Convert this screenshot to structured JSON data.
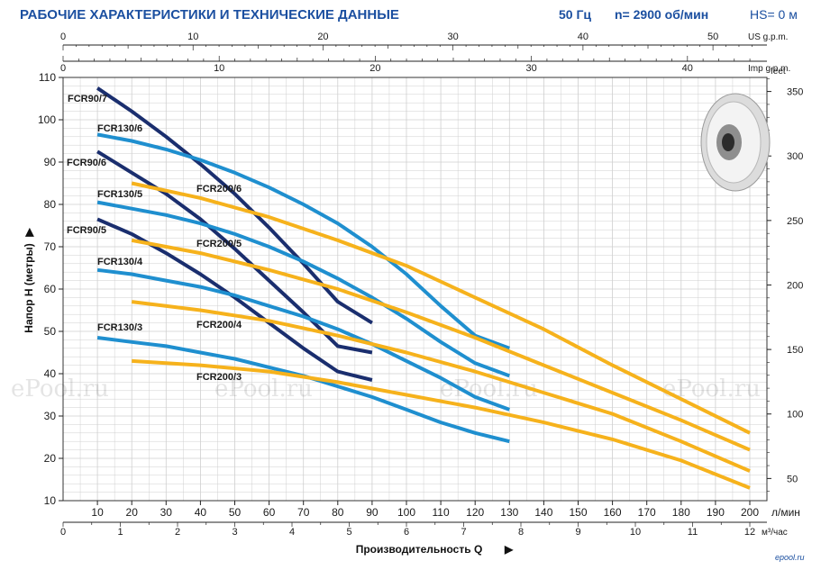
{
  "header": {
    "title": "РАБОЧИЕ ХАРАКТЕРИСТИКИ И ТЕХНИЧЕСКИЕ ДАННЫЕ",
    "freq": "50 Гц",
    "speed": "n= 2900 об/мин",
    "hs": "HS= 0 м"
  },
  "colors": {
    "header": "#1b4fa0",
    "grid": "#c9c9c9",
    "blue_series": "#1f8fcf",
    "navy_series": "#1a2e6e",
    "orange_series": "#f6b21c"
  },
  "watermark": "ePool.ru",
  "logo_text": "epool.ru",
  "image": {
    "icon": "impeller-image"
  },
  "chart_data": {
    "type": "line",
    "ylabel": "Напор H (метры)",
    "xlabel": "Производительность Q",
    "y_unit_right": "feet",
    "x_units": {
      "lpm": "л/мин",
      "m3h": "м³/час",
      "us": "US g.p.m.",
      "imp": "Imp g.p.m."
    },
    "ylim": [
      10,
      110
    ],
    "xlim_lpm": [
      0,
      200
    ],
    "grid": true,
    "y_ticks": [
      10,
      20,
      30,
      40,
      50,
      60,
      70,
      80,
      90,
      100,
      110
    ],
    "y_tick_labels": [
      "10",
      "20",
      "30",
      "40",
      "50",
      "60",
      "70",
      "80",
      "90",
      "100",
      "110"
    ],
    "x_ticks_lpm": [
      10,
      20,
      30,
      40,
      50,
      60,
      70,
      80,
      90,
      100,
      110,
      120,
      130,
      140,
      150,
      160,
      170,
      180,
      190,
      200
    ],
    "x_tick_labels_lpm": [
      "10",
      "20",
      "30",
      "40",
      "50",
      "60",
      "70",
      "80",
      "90",
      "100",
      "110",
      "120",
      "130",
      "140",
      "150",
      "160",
      "170",
      "180",
      "190",
      "200"
    ],
    "m3h_ticks": [
      0,
      1,
      2,
      3,
      4,
      5,
      6,
      7,
      8,
      9,
      10,
      11,
      12
    ],
    "m3h_tick_labels": [
      "0",
      "1",
      "2",
      "3",
      "4",
      "5",
      "6",
      "7",
      "8",
      "9",
      "10",
      "11",
      "12"
    ],
    "us_ticks": [
      0,
      10,
      20,
      30,
      40,
      50
    ],
    "us_tick_labels": [
      "0",
      "10",
      "20",
      "30",
      "40",
      "50"
    ],
    "imp_ticks": [
      0,
      10,
      20,
      30,
      40
    ],
    "imp_tick_labels": [
      "0",
      "10",
      "20",
      "30",
      "40"
    ],
    "feet_ticks": [
      50,
      100,
      150,
      200,
      250,
      300,
      350
    ],
    "feet_tick_labels": [
      "50",
      "100",
      "150",
      "200",
      "250",
      "300",
      "350"
    ],
    "series": [
      {
        "name": "FCR90/7",
        "color": "#1a2e6e",
        "x": [
          10,
          20,
          30,
          40,
          50,
          60,
          70,
          80,
          90
        ],
        "y": [
          107.5,
          102,
          96,
          89.5,
          82.5,
          74.5,
          66,
          57,
          52
        ]
      },
      {
        "name": "FCR90/6",
        "color": "#1a2e6e",
        "x": [
          10,
          20,
          30,
          40,
          50,
          60,
          70,
          80,
          90
        ],
        "y": [
          92.5,
          87.5,
          82.5,
          76.5,
          69.5,
          62,
          54.5,
          46.5,
          45
        ]
      },
      {
        "name": "FCR90/5",
        "color": "#1a2e6e",
        "x": [
          10,
          20,
          30,
          40,
          50,
          60,
          70,
          80,
          90
        ],
        "y": [
          76.5,
          73,
          68.5,
          63.5,
          58,
          52,
          46,
          40.5,
          38.5
        ]
      },
      {
        "name": "FCR130/6",
        "color": "#1f8fcf",
        "x": [
          10,
          20,
          30,
          40,
          50,
          60,
          70,
          80,
          90,
          100,
          110,
          120,
          130
        ],
        "y": [
          96.5,
          95,
          93,
          90.5,
          87.5,
          84,
          80,
          75.5,
          70,
          63.5,
          56,
          49,
          46
        ]
      },
      {
        "name": "FCR130/5",
        "color": "#1f8fcf",
        "x": [
          10,
          20,
          30,
          40,
          50,
          60,
          70,
          80,
          90,
          100,
          110,
          120,
          130
        ],
        "y": [
          80.5,
          79,
          77.5,
          75.5,
          73,
          70,
          66.5,
          62.5,
          58,
          53,
          47.5,
          42.5,
          39.5
        ]
      },
      {
        "name": "FCR130/4",
        "color": "#1f8fcf",
        "x": [
          10,
          20,
          30,
          40,
          50,
          60,
          70,
          80,
          90,
          100,
          110,
          120,
          130
        ],
        "y": [
          64.5,
          63.5,
          62,
          60.5,
          58.5,
          56,
          53.5,
          50.5,
          47,
          43,
          39,
          34.5,
          31.5
        ]
      },
      {
        "name": "FCR130/3",
        "color": "#1f8fcf",
        "x": [
          10,
          20,
          30,
          40,
          50,
          60,
          70,
          80,
          90,
          100,
          110,
          120,
          130
        ],
        "y": [
          48.5,
          47.5,
          46.5,
          45,
          43.5,
          41.5,
          39.5,
          37,
          34.5,
          31.5,
          28.5,
          26,
          24
        ]
      },
      {
        "name": "FCR200/6",
        "color": "#f6b21c",
        "x": [
          20,
          40,
          60,
          80,
          100,
          120,
          140,
          160,
          180,
          200
        ],
        "y": [
          85,
          81.5,
          77,
          71.5,
          65.5,
          58,
          50.5,
          42,
          34,
          26
        ]
      },
      {
        "name": "FCR200/5",
        "color": "#f6b21c",
        "x": [
          20,
          40,
          60,
          80,
          100,
          120,
          140,
          160,
          180,
          200
        ],
        "y": [
          71.5,
          68.5,
          64.5,
          60,
          54.5,
          48.5,
          42,
          35.5,
          29,
          22
        ]
      },
      {
        "name": "FCR200/4",
        "color": "#f6b21c",
        "x": [
          20,
          40,
          60,
          80,
          100,
          120,
          140,
          160,
          180,
          200
        ],
        "y": [
          57,
          55,
          52.5,
          49,
          45,
          40.5,
          35.5,
          30.5,
          24,
          17
        ]
      },
      {
        "name": "FCR200/3",
        "color": "#f6b21c",
        "x": [
          20,
          40,
          60,
          80,
          100,
          120,
          140,
          160,
          180,
          200
        ],
        "y": [
          43,
          42,
          40.5,
          38,
          35,
          32,
          28.5,
          24.5,
          19.5,
          13
        ]
      }
    ]
  }
}
